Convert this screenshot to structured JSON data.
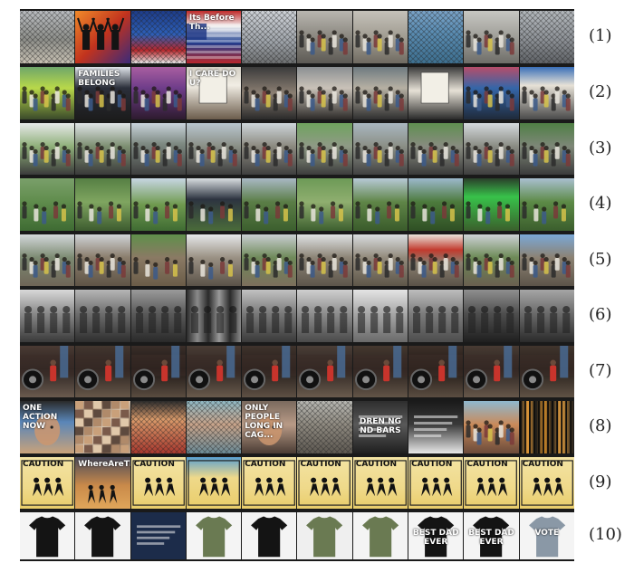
{
  "rows": [
    {
      "label": "(1)",
      "thumbs": [
        {
          "bg": "linear-gradient(180deg,#b9bcc0,#8e8f8a 55%,#c9c2b4)",
          "art": "fence",
          "text": ""
        },
        {
          "bg": "linear-gradient(135deg,#f08a2a,#c2331e 50%,#3b2a7a)",
          "art": "silhouettes",
          "text": ""
        },
        {
          "bg": "linear-gradient(180deg,#1d3c8a,#2d5fb8 45%,#b9272c 75%,#e8e8e8)",
          "art": "fence",
          "text": ""
        },
        {
          "bg": "linear-gradient(180deg,#c02a2a,#f2f2f2 30%,#1f3f8f 60%,#b9272c)",
          "art": "flag",
          "text": "Its Before Th..."
        },
        {
          "bg": "linear-gradient(180deg,#cfd3d8,#9ea3a9 60%,#6d6f70)",
          "art": "fence",
          "text": ""
        },
        {
          "bg": "linear-gradient(180deg,#b9b6b0,#8a877f 50%,#5d5a55)",
          "art": "people",
          "text": ""
        },
        {
          "bg": "linear-gradient(180deg,#c4c1b9,#9a958a 60%,#6f6a61)",
          "art": "people",
          "text": ""
        },
        {
          "bg": "linear-gradient(180deg,#7aa3c8,#5b8db3 40%,#3d6f8f)",
          "art": "fence",
          "text": ""
        },
        {
          "bg": "linear-gradient(180deg,#c7c7c2,#9b9a94 55%,#6e6d68)",
          "art": "people",
          "text": ""
        },
        {
          "bg": "linear-gradient(180deg,#b3b8bc,#8d9196 55%,#5f6266)",
          "art": "fence",
          "text": ""
        }
      ]
    },
    {
      "label": "(2)",
      "thumbs": [
        {
          "bg": "linear-gradient(180deg,#6fa66a,#b8d84a 40%,#3a4a2a)",
          "art": "crowd",
          "text": ""
        },
        {
          "bg": "linear-gradient(180deg,#dfe4ea,#2b2f3a 40%,#1c1c1c)",
          "art": "crowd",
          "text": "FAMILIES BELONG"
        },
        {
          "bg": "linear-gradient(180deg,#a85ea0,#6f3d8a 40%,#2d1b2e)",
          "art": "crowd",
          "text": ""
        },
        {
          "bg": "linear-gradient(180deg,#d4cfc4,#f1ede4 35%,#6b5c4c)",
          "art": "sign",
          "text": "I CARE DO U?"
        },
        {
          "bg": "linear-gradient(180deg,#3b3b3b,#8b7f73 50%,#2a2a2a)",
          "art": "crowd",
          "text": ""
        },
        {
          "bg": "linear-gradient(180deg,#8b8f92,#c9c2b8 40%,#2c2a28)",
          "art": "crowd",
          "text": ""
        },
        {
          "bg": "linear-gradient(180deg,#6e7a80,#b6b0a3 40%,#2f2f2f)",
          "art": "crowd",
          "text": ""
        },
        {
          "bg": "linear-gradient(180deg,#3c3c3c,#e6e1d6 45%,#2a2a2a)",
          "art": "sign",
          "text": ""
        },
        {
          "bg": "linear-gradient(180deg,#b74d6a,#3566a8 40%,#1f2a3a)",
          "art": "crowd",
          "text": ""
        },
        {
          "bg": "linear-gradient(180deg,#3a6fb8,#e6e1d6 35%,#4a4a4a)",
          "art": "crowd",
          "text": ""
        }
      ]
    },
    {
      "label": "(3)",
      "thumbs": [
        {
          "bg": "linear-gradient(180deg,#e7e9ea,#8fb07a 45%,#3b3b3b)",
          "art": "crowd",
          "text": ""
        },
        {
          "bg": "linear-gradient(180deg,#dfe3e6,#7d8f72 45%,#3a3a3a)",
          "art": "crowd",
          "text": ""
        },
        {
          "bg": "linear-gradient(180deg,#c9d3dc,#7e8a82 40%,#3e3e3e)",
          "art": "crowd",
          "text": ""
        },
        {
          "bg": "linear-gradient(180deg,#b9c6cf,#8a8f86 45%,#3d3d3d)",
          "art": "crowd",
          "text": ""
        },
        {
          "bg": "linear-gradient(180deg,#cdd5da,#8c8a80 45%,#3f3f3f)",
          "art": "crowd",
          "text": ""
        },
        {
          "bg": "linear-gradient(180deg,#6fa35e,#8f9a86 45%,#3c3c3c)",
          "art": "crowd",
          "text": ""
        },
        {
          "bg": "linear-gradient(180deg,#a9b7c0,#8b8f86 45%,#414141)",
          "art": "crowd",
          "text": ""
        },
        {
          "bg": "linear-gradient(180deg,#5f8f50,#888b80 45%,#3a3a3a)",
          "art": "crowd",
          "text": ""
        },
        {
          "bg": "linear-gradient(180deg,#d5dadd,#8a8c84 45%,#3e3e3e)",
          "art": "crowd",
          "text": ""
        },
        {
          "bg": "linear-gradient(180deg,#4f7f45,#7e8778 45%,#3b3b3b)",
          "art": "crowd",
          "text": ""
        }
      ]
    },
    {
      "label": "(4)",
      "thumbs": [
        {
          "bg": "linear-gradient(180deg,#7a9f6a,#5f8c4c 45%,#3f6b33)",
          "art": "park",
          "text": ""
        },
        {
          "bg": "linear-gradient(180deg,#567f44,#7fa560 45%,#3d5b2f)",
          "art": "park",
          "text": ""
        },
        {
          "bg": "linear-gradient(180deg,#c7d6e3,#6f9a4f 50%,#3f6b33)",
          "art": "park",
          "text": ""
        },
        {
          "bg": "linear-gradient(180deg,#d8dde0,#2d3440 40%,#4a6b3a)",
          "art": "park",
          "text": ""
        },
        {
          "bg": "linear-gradient(180deg,#a8b8c4,#5a7d46 45%,#3c5f2e)",
          "art": "park",
          "text": ""
        },
        {
          "bg": "linear-gradient(180deg,#6d9a57,#8fae6f 45%,#3d5f2f)",
          "art": "park",
          "text": ""
        },
        {
          "bg": "linear-gradient(180deg,#b7c9d6,#5f8547 45%,#3a5b2b)",
          "art": "park",
          "text": ""
        },
        {
          "bg": "linear-gradient(180deg,#9cb8cc,#4c7a3c 45%,#2f4f24)",
          "art": "park",
          "text": ""
        },
        {
          "bg": "linear-gradient(180deg,#2a3f2a,#38c24a 35%,#3a5f2c)",
          "art": "park",
          "text": ""
        },
        {
          "bg": "linear-gradient(180deg,#a9bfd0,#5c8a46 45%,#3b5e2d)",
          "art": "park",
          "text": ""
        }
      ]
    },
    {
      "label": "(5)",
      "thumbs": [
        {
          "bg": "linear-gradient(180deg,#d3d7da,#7c8a72 45%,#6f6557)",
          "art": "crowd",
          "text": ""
        },
        {
          "bg": "linear-gradient(180deg,#cfd3d6,#8a7d6c 45%,#5f5446)",
          "art": "crowd",
          "text": ""
        },
        {
          "bg": "linear-gradient(180deg,#5f8f4a,#8a7a64 45%,#6b5c48)",
          "art": "park",
          "text": ""
        },
        {
          "bg": "linear-gradient(180deg,#e6e8ea,#9a9184 45%,#5a5248)",
          "art": "park",
          "text": ""
        },
        {
          "bg": "linear-gradient(180deg,#c9ced2,#6f8a5a 45%,#7c6f5c)",
          "art": "crowd",
          "text": ""
        },
        {
          "bg": "linear-gradient(180deg,#dfe2e4,#8c8476 45%,#5d554b)",
          "art": "crowd",
          "text": ""
        },
        {
          "bg": "linear-gradient(180deg,#d8dcdf,#928a7c 45%,#5e5649)",
          "art": "crowd",
          "text": ""
        },
        {
          "bg": "linear-gradient(180deg,#e8e3da,#c23a2e 30%,#8a7f70 55%,#5a5248)",
          "art": "crowd",
          "text": ""
        },
        {
          "bg": "linear-gradient(180deg,#cdd2d6,#6d8a57 45%,#6a5f50)",
          "art": "crowd",
          "text": ""
        },
        {
          "bg": "linear-gradient(180deg,#7aa8d6,#8c8273 45%,#5c5449)",
          "art": "crowd",
          "text": ""
        }
      ]
    },
    {
      "label": "(6)",
      "thumbs": [
        {
          "bg": "linear-gradient(180deg,#d8d8d8,#8a8a8a 45%,#3a3a3a)",
          "art": "bw",
          "text": ""
        },
        {
          "bg": "linear-gradient(180deg,#b6b6b6,#6e6e6e 45%,#2e2e2e)",
          "art": "bw",
          "text": ""
        },
        {
          "bg": "linear-gradient(180deg,#9a9a9a,#5a5a5a 45%,#2a2a2a)",
          "art": "bw",
          "text": ""
        },
        {
          "bg": "linear-gradient(90deg,#2a2a2a,#8a8a8a 20%,#2a2a2a 40%,#9a9a9a 60%,#2a2a2a 80%,#8a8a8a)",
          "art": "bw",
          "text": ""
        },
        {
          "bg": "linear-gradient(180deg,#c2c2c2,#7a7a7a 45%,#3a3a3a)",
          "art": "bw",
          "text": ""
        },
        {
          "bg": "linear-gradient(180deg,#cfcfcf,#8e8e8e 45%,#4a4a4a)",
          "art": "bw",
          "text": ""
        },
        {
          "bg": "linear-gradient(180deg,#e4e4e4,#a8a8a8 45%,#6a6a6a)",
          "art": "bw",
          "text": ""
        },
        {
          "bg": "linear-gradient(180deg,#bdbdbd,#7d7d7d 45%,#4d4d4d)",
          "art": "bw",
          "text": ""
        },
        {
          "bg": "linear-gradient(180deg,#8f8f8f,#4f4f4f 45%,#1f1f1f)",
          "art": "bw",
          "text": ""
        },
        {
          "bg": "linear-gradient(180deg,#a5a5a5,#6b6b6b 45%,#2b2b2b)",
          "art": "bw",
          "text": ""
        }
      ]
    },
    {
      "label": "(7)",
      "thumbs": [
        {
          "bg": "linear-gradient(180deg,#4a3a33,#2a2220 45%,#6a5a4e)",
          "art": "car",
          "text": ""
        },
        {
          "bg": "linear-gradient(180deg,#43362f,#2a221f 45%,#675749)",
          "art": "car",
          "text": ""
        },
        {
          "bg": "linear-gradient(180deg,#3a2e29,#1c1614 45%,#5a4c40)",
          "art": "car",
          "text": ""
        },
        {
          "bg": "linear-gradient(180deg,#4a3d35,#2b2320 45%,#695a4c)",
          "art": "car",
          "text": ""
        },
        {
          "bg": "linear-gradient(180deg,#3f332c,#231c19 45%,#5e5044)",
          "art": "car",
          "text": ""
        },
        {
          "bg": "linear-gradient(180deg,#4a3e36,#2c2421 45%,#6a5b4d)",
          "art": "car",
          "text": ""
        },
        {
          "bg": "linear-gradient(180deg,#45382f,#28201d 45%,#625447)",
          "art": "car",
          "text": ""
        },
        {
          "bg": "linear-gradient(180deg,#3d3029,#201915 45%,#5b4d41)",
          "art": "car",
          "text": ""
        },
        {
          "bg": "linear-gradient(180deg,#483b33,#2a221f 45%,#66574a)",
          "art": "car",
          "text": ""
        },
        {
          "bg": "linear-gradient(180deg,#41352d,#251e1a 45%,#605245)",
          "art": "car",
          "text": ""
        }
      ]
    },
    {
      "label": "(8)",
      "thumbs": [
        {
          "bg": "linear-gradient(180deg,#2a2a2a,#5a86b8 40%,#c9a27a)",
          "art": "face",
          "text": "ONE ACTION NOW"
        },
        {
          "bg": "linear-gradient(135deg,#c9b7a2,#8a6f5a 25%,#d8c8b4 50%,#7a5e4a 75%,#c2ad96)",
          "art": "collage",
          "text": ""
        },
        {
          "bg": "linear-gradient(180deg,#2c2c2c,#d99a6a 35%,#a8382e)",
          "art": "fence",
          "text": ""
        },
        {
          "bg": "linear-gradient(180deg,#8fb8c4,#c9a48a 45%,#6a8a96)",
          "art": "fence",
          "text": ""
        },
        {
          "bg": "linear-gradient(180deg,#7a6a5e,#b89a86 45%,#4a3c34)",
          "art": "face",
          "text": "ONLY PEOPLE LONG IN CAG..."
        },
        {
          "bg": "linear-gradient(180deg,#b7b7b2,#8f8a80 45%,#5c5750)",
          "art": "fence",
          "text": ""
        },
        {
          "bg": "linear-gradient(180deg,#2e2e2e,#595959 45%,#1f1f1f)",
          "art": "text",
          "text": "DREN NG ND BARS"
        },
        {
          "bg": "linear-gradient(180deg,#1a1a1a,#3a3a3a 45%,#e8e8e8)",
          "art": "text",
          "text": ""
        },
        {
          "bg": "linear-gradient(180deg,#8fb8cf,#c98a5a 45%,#6a4a3a)",
          "art": "crowd",
          "text": ""
        },
        {
          "bg": "linear-gradient(90deg,#1a1a1a,#e39a3a 15%,#1a1a1a 30%,#d08a2a 45%,#1a1a1a 60%,#e5a040 75%,#1a1a1a)",
          "art": "bars",
          "text": ""
        }
      ]
    },
    {
      "label": "(9)",
      "thumbs": [
        {
          "bg": "linear-gradient(180deg,#f3e3a3,#efd98a 60%,#e9cd6a)",
          "art": "caution",
          "text": "CAUTION"
        },
        {
          "bg": "linear-gradient(180deg,#4a4a5a,#c98a4a 55%,#e0a65a)",
          "art": "runners",
          "text": "WhereAreTheChildren"
        },
        {
          "bg": "linear-gradient(180deg,#f3e3a3,#efd98a 60%,#e9cd6a)",
          "art": "caution",
          "text": "CAUTION"
        },
        {
          "bg": "linear-gradient(180deg,#5aa0d0,#efd98a 40%,#e9cd6a)",
          "art": "caution",
          "text": ""
        },
        {
          "bg": "linear-gradient(180deg,#f3e3a3,#efd98a 60%,#e9cd6a)",
          "art": "caution",
          "text": "CAUTION"
        },
        {
          "bg": "linear-gradient(180deg,#f3e3a3,#efd98a 60%,#e9cd6a)",
          "art": "caution",
          "text": "CAUTION"
        },
        {
          "bg": "linear-gradient(180deg,#f3e3a3,#efd98a 60%,#e9cd6a)",
          "art": "caution",
          "text": "CAUTION"
        },
        {
          "bg": "linear-gradient(180deg,#f3e3a3,#efd98a 60%,#e9cd6a)",
          "art": "caution",
          "text": "CAUTION"
        },
        {
          "bg": "linear-gradient(180deg,#f3e3a3,#efd98a 60%,#e9cd6a)",
          "art": "caution",
          "text": "CAUTION"
        },
        {
          "bg": "linear-gradient(180deg,#f3e3a3,#efd98a 60%,#e9cd6a)",
          "art": "caution",
          "text": "CAUTION"
        }
      ]
    },
    {
      "label": "(10)",
      "thumbs": [
        {
          "bg": "linear-gradient(180deg,#f4f4f4,#f4f4f4)",
          "art": "shirt-black",
          "text": ""
        },
        {
          "bg": "linear-gradient(180deg,#f2f2f2,#f2f2f2)",
          "art": "shirt-black",
          "text": ""
        },
        {
          "bg": "linear-gradient(180deg,#1c2c4a,#1c2c4a)",
          "art": "text",
          "text": ""
        },
        {
          "bg": "linear-gradient(180deg,#f4f4f4,#f4f4f4)",
          "art": "shirt-green",
          "text": ""
        },
        {
          "bg": "linear-gradient(180deg,#f4f4f4,#f4f4f4)",
          "art": "shirt-black",
          "text": ""
        },
        {
          "bg": "linear-gradient(180deg,#efefef,#efefef)",
          "art": "shirt-green",
          "text": ""
        },
        {
          "bg": "linear-gradient(180deg,#f4f4f4,#f4f4f4)",
          "art": "shirt-green",
          "text": ""
        },
        {
          "bg": "linear-gradient(180deg,#f4f4f4,#f4f4f4)",
          "art": "shirt-black",
          "text": "BEST DAD EVER"
        },
        {
          "bg": "linear-gradient(180deg,#f4f4f4,#f4f4f4)",
          "art": "shirt-black",
          "text": "BEST DAD EVER"
        },
        {
          "bg": "linear-gradient(180deg,#f4f4f4,#f4f4f4)",
          "art": "shirt-grey",
          "text": "VOTE"
        }
      ]
    }
  ]
}
